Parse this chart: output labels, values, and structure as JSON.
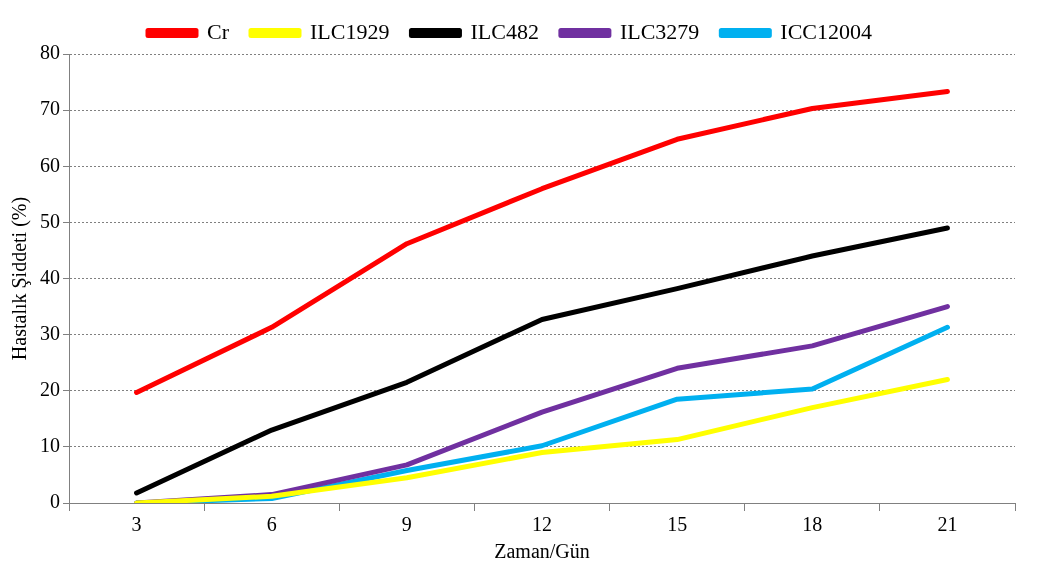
{
  "chart_data": {
    "type": "line",
    "xlabel": "Zaman/Gün",
    "ylabel": "Hastalık Şiddeti (%)",
    "categories": [
      "3",
      "6",
      "9",
      "12",
      "15",
      "18",
      "21"
    ],
    "series": [
      {
        "name": "Cr",
        "color": "#ff0000",
        "values": [
          19.7,
          31.3,
          46.2,
          56,
          64.8,
          70.3,
          73.3
        ]
      },
      {
        "name": "ILC1929",
        "color": "#ffff00",
        "values": [
          0,
          1.2,
          4.5,
          9,
          11.3,
          17,
          22
        ]
      },
      {
        "name": "ILC482",
        "color": "#000000",
        "values": [
          1.8,
          13,
          21.5,
          32.7,
          38.2,
          44,
          49
        ]
      },
      {
        "name": "ILC3279",
        "color": "#7030a0",
        "values": [
          0,
          1.5,
          6.8,
          16.2,
          24,
          28,
          35
        ]
      },
      {
        "name": "ICC12004",
        "color": "#00b0f0",
        "values": [
          0,
          0.8,
          5.8,
          10.2,
          18.5,
          20.3,
          31.3
        ]
      }
    ],
    "ylim": [
      0,
      80
    ],
    "yticks": [
      0,
      10,
      20,
      30,
      40,
      50,
      60,
      70,
      80
    ],
    "grid": "y",
    "legend": "top",
    "marker": "none",
    "line_style": "solid"
  }
}
